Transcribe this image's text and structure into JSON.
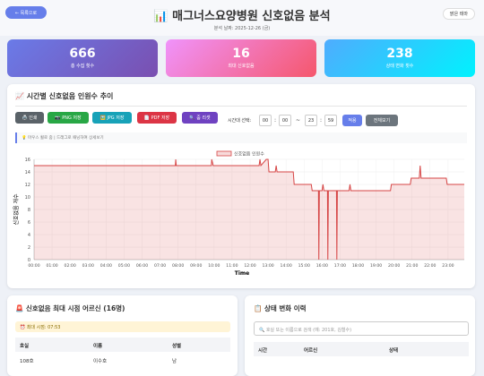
{
  "header": {
    "back": "← 목록으로",
    "title": "📊 매그너스요양병원 신호없음 분석",
    "date": "분석 날짜: 2025-12-26 (금)",
    "theme": "밝은 테마"
  },
  "stats": [
    {
      "value": 666,
      "label": "총 수집 횟수"
    },
    {
      "value": 16,
      "label": "최대 신호없음"
    },
    {
      "value": 238,
      "label": "상태 변화 횟수"
    }
  ],
  "chart_panel": {
    "title": "📈 시간별 신호없음 인원수 추이",
    "buttons": [
      "🖨️ 인쇄",
      "📷 PNG 저장",
      "🖼️ JPG 저장",
      "📄 PDF 저장",
      "🔍 줌 리셋"
    ],
    "range_label": "시간대 선택:",
    "range": [
      "00",
      "00",
      "23",
      "59"
    ],
    "separators": [
      ":",
      "~",
      ":"
    ],
    "apply": "적용",
    "all": "전체보기",
    "hint": "💡 마우스 휠로 줌 | 드래그로 패닝하여 상세보기"
  },
  "chart_data": {
    "type": "line",
    "xlabel": "Time",
    "ylabel": "신호없음 개수",
    "grid": true,
    "x": [
      0,
      7.85,
      7.87,
      7.9,
      9.85,
      9.87,
      9.95,
      12.5,
      12.55,
      12.6,
      12.9,
      13.0,
      13.05,
      13.4,
      13.45,
      13.5,
      14.4,
      14.45,
      15.4,
      15.45,
      15.8,
      15.82,
      15.85,
      16.0,
      16.05,
      16.1,
      16.3,
      16.32,
      16.35,
      16.8,
      16.82,
      16.85,
      17.5,
      17.55,
      17.6,
      19.8,
      19.85,
      20.9,
      20.95,
      21.4,
      21.45,
      21.5,
      22.9,
      22.95,
      23.9
    ],
    "series": [
      {
        "name": "신호없음 인원수",
        "color": "#d64545",
        "values": [
          15,
          15,
          16,
          15,
          15,
          16,
          15,
          15,
          16,
          15,
          16,
          16,
          14,
          14,
          15,
          14,
          14,
          12,
          12,
          11,
          11,
          0,
          11,
          11,
          12,
          11,
          11,
          0,
          11,
          11,
          0,
          11,
          11,
          12,
          11,
          11,
          12,
          12,
          13,
          13,
          15,
          13,
          13,
          12,
          12
        ]
      }
    ],
    "xlim": [
      0,
      23.9
    ],
    "xticks": [
      {
        "value": 0,
        "label": "00:00"
      },
      {
        "value": 1,
        "label": "01:00"
      },
      {
        "value": 2,
        "label": "02:00"
      },
      {
        "value": 3,
        "label": "03:00"
      },
      {
        "value": 4,
        "label": "04:00"
      },
      {
        "value": 5,
        "label": "05:00"
      },
      {
        "value": 6,
        "label": "06:00"
      },
      {
        "value": 7,
        "label": "07:00"
      },
      {
        "value": 8,
        "label": "08:00"
      },
      {
        "value": 9,
        "label": "09:00"
      },
      {
        "value": 10,
        "label": "10:00"
      },
      {
        "value": 11,
        "label": "11:00"
      },
      {
        "value": 12,
        "label": "12:00"
      },
      {
        "value": 13,
        "label": "13:00"
      },
      {
        "value": 14,
        "label": "14:00"
      },
      {
        "value": 15,
        "label": "15:00"
      },
      {
        "value": 16,
        "label": "16:00"
      },
      {
        "value": 17,
        "label": "17:00"
      },
      {
        "value": 18,
        "label": "18:00"
      },
      {
        "value": 19,
        "label": "19:00"
      },
      {
        "value": 20,
        "label": "20:00"
      },
      {
        "value": 21,
        "label": "21:00"
      },
      {
        "value": 22,
        "label": "22:00"
      },
      {
        "value": 23,
        "label": "23:00"
      }
    ],
    "ylim": [
      0,
      16
    ],
    "yticks": [
      0,
      2,
      4,
      6,
      8,
      10,
      12,
      14,
      16
    ]
  },
  "max_panel": {
    "title": "🚨 신호없음 최대 시점 어르신 (16명)",
    "time": "⏰ 최대 시점: 07:53",
    "columns": [
      "호실",
      "이름",
      "성별"
    ],
    "rows": [
      [
        "108호",
        "이수호",
        "남"
      ]
    ]
  },
  "history_panel": {
    "title": "📋 상태 변화 이력",
    "search": "🔍 호실 또는 이름으로 검색 (예: 201호, 김철수)",
    "columns": [
      "시간",
      "어르신",
      "상태"
    ]
  }
}
